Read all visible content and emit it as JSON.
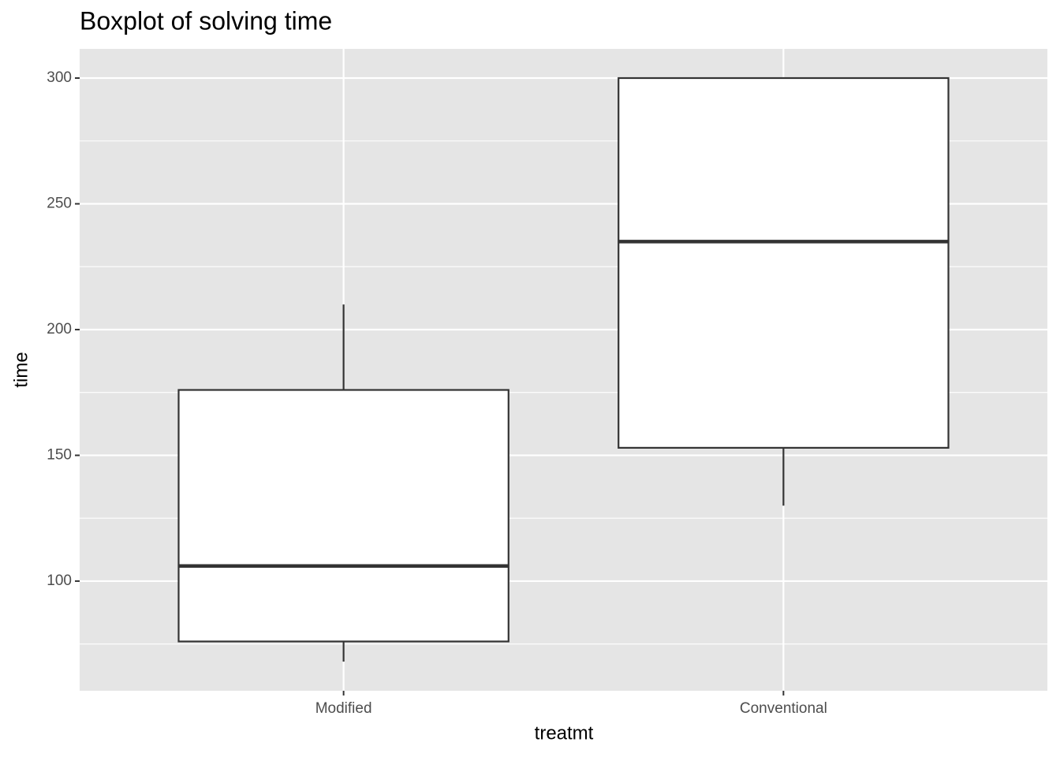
{
  "chart_data": {
    "type": "boxplot",
    "title": "Boxplot of solving time",
    "x_label": "treatmt",
    "y_label": "time",
    "categories": [
      "Modified",
      "Conventional"
    ],
    "min": [
      68,
      130
    ],
    "q1": [
      76,
      153
    ],
    "median": [
      106,
      235
    ],
    "q3": [
      176,
      300
    ],
    "max": [
      210,
      300
    ],
    "ylim": [
      56.4,
      311.6
    ],
    "yticks": [
      100,
      150,
      200,
      250,
      300
    ],
    "minor_yticks": [
      75,
      125,
      175,
      225,
      275
    ],
    "grid": true,
    "box_fill": "#ffffff",
    "box_stroke": "#333333",
    "panel_color": "#e5e5e5"
  }
}
